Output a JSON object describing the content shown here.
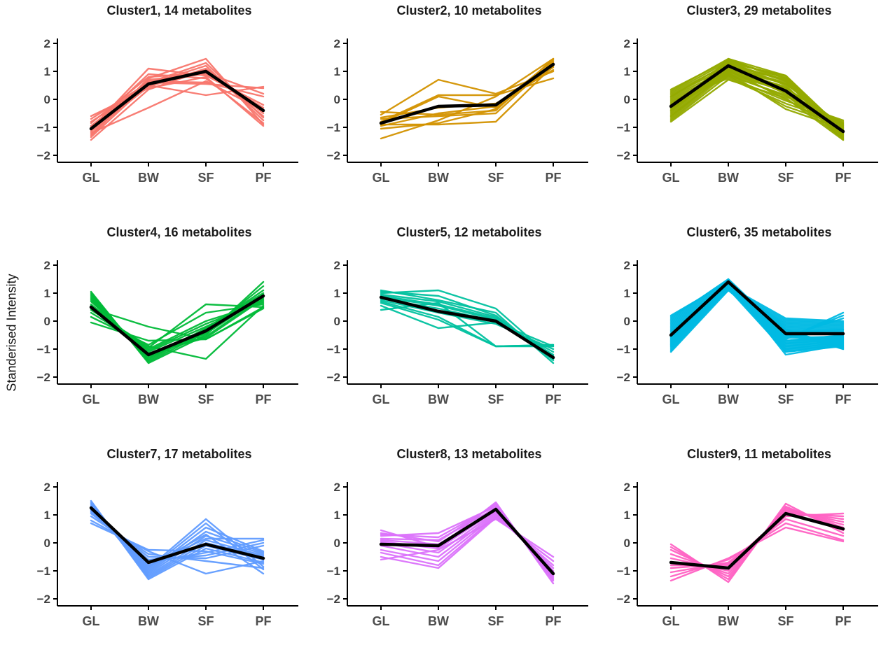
{
  "figure": {
    "y_axis_label": "Standerised Intensity",
    "x_categories": [
      "GL",
      "BW",
      "SF",
      "PF"
    ],
    "y_tick_labels": [
      "2",
      "1",
      "0",
      "−1",
      "−2"
    ],
    "y_tick_values": [
      2,
      1,
      0,
      -1,
      -2
    ],
    "ylim": [
      -2,
      2
    ],
    "axis_color": "#000000",
    "tick_text_color": "#404040",
    "category_text_color": "#4d4d4d",
    "title_color": "#1a1a1a",
    "mean_line_color": "#000000"
  },
  "chart_data": [
    {
      "type": "line",
      "title": "Cluster1, 14 metabolites",
      "cluster": "Cluster1",
      "n_metabolites": 14,
      "color": "#F8766D",
      "categories": [
        "GL",
        "BW",
        "SF",
        "PF"
      ],
      "ylim": [
        -2,
        2
      ],
      "mean": [
        -1.05,
        0.55,
        1.0,
        -0.4
      ],
      "members": [
        [
          -1.45,
          0.35,
          1.05,
          -0.6
        ],
        [
          -1.35,
          0.55,
          1.2,
          -0.75
        ],
        [
          -1.3,
          0.75,
          1.45,
          -0.9
        ],
        [
          -1.25,
          0.6,
          1.3,
          -0.65
        ],
        [
          -1.2,
          -0.3,
          0.65,
          -0.4
        ],
        [
          -1.15,
          0.45,
          1.1,
          -0.5
        ],
        [
          -1.1,
          0.7,
          0.9,
          -0.3
        ],
        [
          -1.05,
          1.1,
          0.85,
          -0.2
        ],
        [
          -1.0,
          0.9,
          0.75,
          -0.85
        ],
        [
          -0.95,
          0.65,
          0.6,
          0.1
        ],
        [
          -0.85,
          0.8,
          0.95,
          0.2
        ],
        [
          -0.8,
          0.5,
          0.15,
          0.45
        ],
        [
          -0.7,
          0.6,
          0.55,
          0.4
        ],
        [
          -0.6,
          0.4,
          0.8,
          -0.95
        ]
      ]
    },
    {
      "type": "line",
      "title": "Cluster2, 10 metabolites",
      "cluster": "Cluster2",
      "n_metabolites": 10,
      "color": "#D39200",
      "categories": [
        "GL",
        "BW",
        "SF",
        "PF"
      ],
      "ylim": [
        -2,
        2
      ],
      "mean": [
        -0.85,
        -0.25,
        -0.2,
        1.25
      ],
      "members": [
        [
          -1.4,
          -0.75,
          0.1,
          1.45
        ],
        [
          -1.05,
          -0.85,
          -0.35,
          1.3
        ],
        [
          -0.95,
          -0.5,
          -0.25,
          1.4
        ],
        [
          -0.9,
          -0.9,
          -0.8,
          1.2
        ],
        [
          -0.85,
          0.1,
          -0.3,
          1.15
        ],
        [
          -0.8,
          0.15,
          0.15,
          0.75
        ],
        [
          -0.7,
          -0.6,
          -0.5,
          1.35
        ],
        [
          -0.65,
          -0.3,
          -0.15,
          1.05
        ],
        [
          -0.55,
          0.7,
          0.2,
          1.0
        ],
        [
          -0.45,
          -0.55,
          -0.4,
          1.45
        ]
      ]
    },
    {
      "type": "line",
      "title": "Cluster3, 29 metabolites",
      "cluster": "Cluster3",
      "n_metabolites": 29,
      "color": "#93AA00",
      "categories": [
        "GL",
        "BW",
        "SF",
        "PF"
      ],
      "ylim": [
        -2,
        2
      ],
      "mean": [
        -0.25,
        1.2,
        0.3,
        -1.15
      ],
      "members": [
        [
          -0.8,
          0.7,
          0.05,
          -1.45
        ],
        [
          -0.75,
          0.85,
          0.15,
          -1.4
        ],
        [
          -0.7,
          0.95,
          0.3,
          -1.35
        ],
        [
          -0.65,
          1.05,
          0.45,
          -1.3
        ],
        [
          -0.6,
          1.15,
          0.6,
          -1.25
        ],
        [
          -0.55,
          1.25,
          0.7,
          -1.2
        ],
        [
          -0.5,
          1.35,
          0.8,
          -1.15
        ],
        [
          -0.45,
          1.45,
          0.85,
          -1.1
        ],
        [
          -0.4,
          1.4,
          0.75,
          -1.05
        ],
        [
          -0.35,
          1.3,
          0.65,
          -1.0
        ],
        [
          -0.3,
          1.2,
          0.55,
          -0.95
        ],
        [
          -0.25,
          1.1,
          0.4,
          -0.9
        ],
        [
          -0.2,
          1.0,
          0.25,
          -0.85
        ],
        [
          -0.15,
          0.9,
          0.1,
          -0.8
        ],
        [
          -0.1,
          0.8,
          -0.05,
          -0.75
        ],
        [
          -0.05,
          0.75,
          -0.15,
          -0.85
        ],
        [
          0.0,
          0.85,
          -0.25,
          -0.95
        ],
        [
          0.05,
          0.95,
          -0.35,
          -1.05
        ],
        [
          0.1,
          1.05,
          0.0,
          -1.15
        ],
        [
          0.15,
          1.15,
          0.2,
          -1.25
        ],
        [
          0.2,
          1.25,
          0.35,
          -1.35
        ],
        [
          0.25,
          1.35,
          0.5,
          -1.45
        ],
        [
          0.3,
          1.45,
          0.65,
          -1.4
        ],
        [
          0.35,
          1.4,
          0.75,
          -1.3
        ],
        [
          0.1,
          1.3,
          0.85,
          -1.2
        ],
        [
          -0.2,
          1.2,
          0.7,
          -1.1
        ],
        [
          -0.4,
          1.1,
          0.55,
          -1.0
        ],
        [
          -0.6,
          1.0,
          0.4,
          -0.9
        ],
        [
          -0.3,
          0.9,
          0.3,
          -1.15
        ]
      ]
    },
    {
      "type": "line",
      "title": "Cluster4, 16 metabolites",
      "cluster": "Cluster4",
      "n_metabolites": 16,
      "color": "#00BA38",
      "categories": [
        "GL",
        "BW",
        "SF",
        "PF"
      ],
      "ylim": [
        -2,
        2
      ],
      "mean": [
        0.5,
        -1.2,
        -0.35,
        0.9
      ],
      "members": [
        [
          1.05,
          -1.5,
          -0.5,
          1.4
        ],
        [
          1.0,
          -1.45,
          -0.4,
          1.25
        ],
        [
          0.95,
          -1.4,
          -0.3,
          1.1
        ],
        [
          0.9,
          -1.35,
          -0.25,
          1.0
        ],
        [
          0.85,
          -1.3,
          -0.35,
          0.95
        ],
        [
          0.8,
          -1.25,
          -0.45,
          0.9
        ],
        [
          0.75,
          -1.2,
          -0.55,
          0.85
        ],
        [
          0.7,
          -1.15,
          -0.6,
          0.8
        ],
        [
          0.6,
          -1.1,
          -0.2,
          0.75
        ],
        [
          0.55,
          -1.05,
          -0.1,
          0.7
        ],
        [
          0.5,
          -1.0,
          0.0,
          0.65
        ],
        [
          0.45,
          -0.2,
          -0.65,
          0.5
        ],
        [
          0.4,
          -0.9,
          -1.35,
          0.55
        ],
        [
          0.3,
          -0.95,
          0.6,
          0.5
        ],
        [
          0.15,
          -0.85,
          0.3,
          0.6
        ],
        [
          -0.05,
          -0.7,
          -0.65,
          0.45
        ]
      ]
    },
    {
      "type": "line",
      "title": "Cluster5, 12 metabolites",
      "cluster": "Cluster5",
      "n_metabolites": 12,
      "color": "#00C19F",
      "categories": [
        "GL",
        "BW",
        "SF",
        "PF"
      ],
      "ylim": [
        -2,
        2
      ],
      "mean": [
        0.85,
        0.35,
        0.0,
        -1.3
      ],
      "members": [
        [
          1.1,
          0.75,
          0.3,
          -1.5
        ],
        [
          1.05,
          0.9,
          0.2,
          -1.4
        ],
        [
          1.0,
          1.1,
          0.45,
          -1.35
        ],
        [
          0.95,
          0.7,
          0.15,
          -1.3
        ],
        [
          0.9,
          0.6,
          0.1,
          -1.25
        ],
        [
          0.85,
          0.55,
          0.05,
          -1.2
        ],
        [
          0.8,
          0.45,
          0.0,
          -1.1
        ],
        [
          0.75,
          0.3,
          -0.1,
          -1.0
        ],
        [
          0.7,
          0.15,
          -0.9,
          -0.9
        ],
        [
          0.65,
          0.05,
          -0.9,
          -0.85
        ],
        [
          0.55,
          -0.25,
          -0.05,
          -0.9
        ],
        [
          0.4,
          0.65,
          -0.9,
          -0.85
        ]
      ]
    },
    {
      "type": "line",
      "title": "Cluster6, 35 metabolites",
      "cluster": "Cluster6",
      "n_metabolites": 35,
      "color": "#00B9E3",
      "categories": [
        "GL",
        "BW",
        "SF",
        "PF"
      ],
      "ylim": [
        -2,
        2
      ],
      "mean": [
        -0.5,
        1.4,
        -0.45,
        -0.45
      ],
      "members": [
        [
          -1.1,
          1.1,
          -0.6,
          -0.55
        ],
        [
          -1.05,
          1.15,
          -0.7,
          -0.6
        ],
        [
          -1.0,
          1.2,
          -0.8,
          -0.65
        ],
        [
          -0.95,
          1.25,
          -0.9,
          -0.7
        ],
        [
          -0.9,
          1.3,
          -1.0,
          -0.75
        ],
        [
          -0.85,
          1.35,
          -1.1,
          -0.8
        ],
        [
          -0.8,
          1.4,
          -1.2,
          -0.85
        ],
        [
          -0.75,
          1.45,
          -0.5,
          -0.9
        ],
        [
          -0.7,
          1.5,
          -0.45,
          -0.95
        ],
        [
          -0.65,
          1.45,
          -0.4,
          -1.0
        ],
        [
          -0.6,
          1.4,
          -0.35,
          -0.45
        ],
        [
          -0.55,
          1.35,
          -0.3,
          -0.4
        ],
        [
          -0.5,
          1.3,
          -0.25,
          -0.35
        ],
        [
          -0.45,
          1.25,
          -0.2,
          -0.3
        ],
        [
          -0.4,
          1.2,
          -0.15,
          -0.25
        ],
        [
          -0.35,
          1.15,
          -0.1,
          -0.2
        ],
        [
          -0.3,
          1.1,
          -0.05,
          -0.15
        ],
        [
          -0.25,
          1.15,
          0.0,
          -0.1
        ],
        [
          -0.2,
          1.2,
          0.05,
          -0.05
        ],
        [
          -0.15,
          1.25,
          0.1,
          0.0
        ],
        [
          -0.1,
          1.3,
          -0.55,
          0.1
        ],
        [
          -0.05,
          1.35,
          -0.6,
          0.2
        ],
        [
          0.0,
          1.4,
          -0.65,
          0.3
        ],
        [
          0.05,
          1.45,
          -0.7,
          -0.5
        ],
        [
          0.1,
          1.5,
          -0.75,
          -0.55
        ],
        [
          0.15,
          1.45,
          -0.8,
          -0.6
        ],
        [
          0.2,
          1.4,
          -0.85,
          -0.65
        ],
        [
          -0.55,
          1.35,
          -0.9,
          -0.7
        ],
        [
          -0.6,
          1.3,
          -0.95,
          -0.75
        ],
        [
          -0.65,
          1.25,
          -1.0,
          -0.8
        ],
        [
          -0.7,
          1.2,
          -1.05,
          -0.85
        ],
        [
          -0.75,
          1.15,
          -1.1,
          -0.9
        ],
        [
          -0.8,
          1.1,
          -0.3,
          -0.95
        ],
        [
          -0.85,
          1.2,
          -0.35,
          -1.0
        ],
        [
          -0.9,
          1.3,
          -0.4,
          -0.3
        ]
      ]
    },
    {
      "type": "line",
      "title": "Cluster7, 17 metabolites",
      "cluster": "Cluster7",
      "n_metabolites": 17,
      "color": "#619CFF",
      "categories": [
        "GL",
        "BW",
        "SF",
        "PF"
      ],
      "ylim": [
        -2,
        2
      ],
      "mean": [
        1.25,
        -0.7,
        -0.05,
        -0.55
      ],
      "members": [
        [
          1.5,
          -1.3,
          -0.2,
          -0.7
        ],
        [
          1.45,
          -1.25,
          -0.1,
          -0.6
        ],
        [
          1.4,
          -1.2,
          0.0,
          -0.5
        ],
        [
          1.35,
          -1.15,
          0.1,
          -0.45
        ],
        [
          1.3,
          -1.1,
          0.25,
          -0.4
        ],
        [
          1.3,
          -1.05,
          0.4,
          -0.35
        ],
        [
          1.25,
          -1.0,
          0.55,
          -0.3
        ],
        [
          1.25,
          -0.95,
          0.7,
          -0.95
        ],
        [
          1.2,
          -0.9,
          0.85,
          -0.85
        ],
        [
          1.2,
          -0.85,
          0.3,
          -1.1
        ],
        [
          1.15,
          -0.8,
          0.15,
          0.15
        ],
        [
          1.15,
          -0.7,
          -0.35,
          0.1
        ],
        [
          1.1,
          -0.6,
          -0.45,
          0.0
        ],
        [
          1.05,
          -0.5,
          -0.55,
          -0.1
        ],
        [
          0.95,
          -0.4,
          -0.65,
          -0.9
        ],
        [
          0.8,
          -0.3,
          -1.1,
          -0.65
        ],
        [
          0.7,
          -0.25,
          -0.3,
          -0.75
        ]
      ]
    },
    {
      "type": "line",
      "title": "Cluster8, 13 metabolites",
      "cluster": "Cluster8",
      "n_metabolites": 13,
      "color": "#DB72FB",
      "categories": [
        "GL",
        "BW",
        "SF",
        "PF"
      ],
      "ylim": [
        -2,
        2
      ],
      "mean": [
        -0.05,
        -0.1,
        1.2,
        -1.1
      ],
      "members": [
        [
          0.45,
          -0.15,
          1.45,
          -1.45
        ],
        [
          0.35,
          0.05,
          1.4,
          -1.35
        ],
        [
          0.3,
          0.2,
          1.35,
          -1.3
        ],
        [
          0.25,
          0.35,
          1.3,
          -1.25
        ],
        [
          0.15,
          0.1,
          1.25,
          -1.2
        ],
        [
          0.1,
          -0.05,
          1.2,
          -1.15
        ],
        [
          0.05,
          -0.2,
          1.15,
          -1.1
        ],
        [
          0.0,
          -0.35,
          1.1,
          -1.05
        ],
        [
          -0.1,
          -0.5,
          1.05,
          -1.0
        ],
        [
          -0.25,
          -0.65,
          1.0,
          -0.9
        ],
        [
          -0.35,
          -0.8,
          0.95,
          -0.8
        ],
        [
          -0.5,
          -0.9,
          0.9,
          -0.65
        ],
        [
          -0.6,
          -0.25,
          0.85,
          -0.5
        ]
      ]
    },
    {
      "type": "line",
      "title": "Cluster9, 11 metabolites",
      "cluster": "Cluster9",
      "n_metabolites": 11,
      "color": "#FF61C3",
      "categories": [
        "GL",
        "BW",
        "SF",
        "PF"
      ],
      "ylim": [
        -2,
        2
      ],
      "mean": [
        -0.7,
        -0.9,
        1.05,
        0.5
      ],
      "members": [
        [
          -0.05,
          -1.4,
          1.4,
          0.35
        ],
        [
          -0.15,
          -1.3,
          1.3,
          0.45
        ],
        [
          -0.25,
          -1.2,
          1.25,
          0.55
        ],
        [
          -0.4,
          -1.1,
          1.2,
          0.65
        ],
        [
          -0.55,
          -1.0,
          1.15,
          0.75
        ],
        [
          -0.7,
          -0.9,
          1.1,
          0.85
        ],
        [
          -0.8,
          -0.8,
          1.05,
          0.95
        ],
        [
          -0.9,
          -0.75,
          0.95,
          1.05
        ],
        [
          -1.05,
          -0.7,
          0.85,
          0.25
        ],
        [
          -1.2,
          -0.6,
          0.7,
          0.1
        ],
        [
          -1.35,
          -0.55,
          0.55,
          0.05
        ]
      ]
    }
  ]
}
